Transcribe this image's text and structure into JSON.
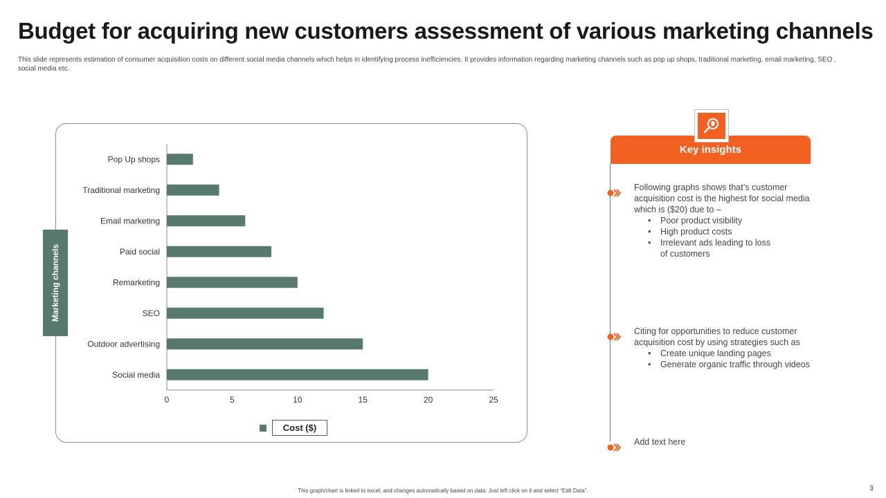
{
  "slide": {
    "title": "Budget for acquiring new customers assessment of various marketing channels",
    "subtitle": "This slide represents estimation of consumer acquisition costs on different social media channels which helps in identifying process inefficiencies. It provides information regarding marketing channels such as pop up shops, traditional marketing, email marketing, SEO , social media etc.",
    "footer": "This graph/chart is linked to excel, and changes automatically based on data. Just left click on it and select “Edit Data”.",
    "page_number": "3"
  },
  "chart_data": {
    "type": "bar",
    "orientation": "horizontal",
    "categories": [
      "Pop Up shops",
      "Traditional marketing",
      "Email marketing",
      "Paid social",
      "Remarketing",
      "SEO",
      "Outdoor advertising",
      "Social media"
    ],
    "series": [
      {
        "name": "Cost ($)",
        "values": [
          2,
          4,
          6,
          8,
          10,
          12,
          15,
          20
        ],
        "color": "#587a6e"
      }
    ],
    "xlim": [
      0,
      25
    ],
    "xticks": [
      0,
      5,
      10,
      15,
      20,
      25
    ],
    "xlabel": "",
    "ylabel": "Marketing channels",
    "legend_position": "bottom",
    "grid": false
  },
  "insights": {
    "header": "Key insights",
    "icon": "lightbulb-search-icon",
    "accent_color": "#f26122",
    "items": [
      {
        "lines": [
          "Following graphs shows that’s customer",
          "acquisition cost is the highest for social media",
          "which is ($20) due to –"
        ],
        "bullets": [
          "Poor product visibility",
          "High product costs",
          "Irrelevant  ads leading to loss",
          "of customers"
        ]
      },
      {
        "lines": [
          "Citing for opportunities to reduce customer",
          "acquisition cost by using strategies such as"
        ],
        "bullets": [
          "Create unique landing pages",
          "Generate organic traffic through videos"
        ]
      },
      {
        "lines": [
          "Add text here"
        ],
        "bullets": []
      }
    ]
  }
}
